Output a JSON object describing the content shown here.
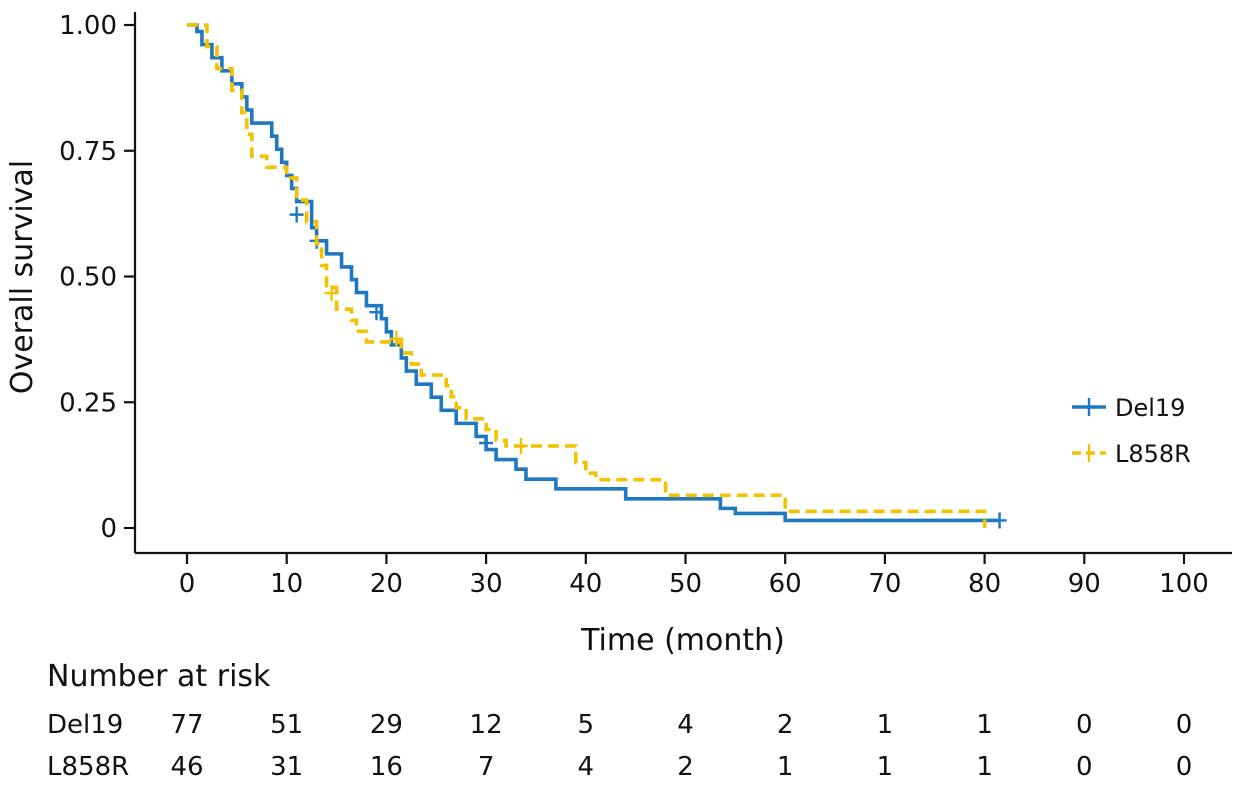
{
  "chart_data": {
    "type": "line",
    "subtype": "kaplan-meier",
    "xlabel": "Time (month)",
    "ylabel": "Overall survival",
    "xlim": [
      0,
      100
    ],
    "ylim": [
      0,
      1
    ],
    "x_ticks": [
      "0",
      "10",
      "20",
      "30",
      "40",
      "50",
      "60",
      "70",
      "80",
      "90",
      "100"
    ],
    "y_ticks": [
      "0",
      "0.25",
      "0.50",
      "0.75",
      "1.00"
    ],
    "grid": false,
    "legend_position": "right",
    "series": [
      {
        "name": "Del19",
        "color": "#1f77bf",
        "dash": "solid",
        "steps": [
          [
            0,
            1.0
          ],
          [
            1,
            0.987
          ],
          [
            1.5,
            0.961
          ],
          [
            2.5,
            0.935
          ],
          [
            3.5,
            0.909
          ],
          [
            4.5,
            0.883
          ],
          [
            5.5,
            0.857
          ],
          [
            6,
            0.831
          ],
          [
            6.5,
            0.805
          ],
          [
            8.5,
            0.779
          ],
          [
            9.0,
            0.753
          ],
          [
            9.5,
            0.727
          ],
          [
            10,
            0.701
          ],
          [
            10.5,
            0.675
          ],
          [
            11,
            0.649
          ],
          [
            12.5,
            0.597
          ],
          [
            13,
            0.571
          ],
          [
            14,
            0.545
          ],
          [
            15.5,
            0.519
          ],
          [
            16.5,
            0.494
          ],
          [
            17,
            0.468
          ],
          [
            18,
            0.442
          ],
          [
            19.5,
            0.416
          ],
          [
            20,
            0.39
          ],
          [
            20.5,
            0.364
          ],
          [
            21.5,
            0.338
          ],
          [
            22,
            0.312
          ],
          [
            23,
            0.286
          ],
          [
            24.5,
            0.26
          ],
          [
            25.5,
            0.234
          ],
          [
            27,
            0.208
          ],
          [
            29,
            0.182
          ],
          [
            30,
            0.156
          ],
          [
            31,
            0.136
          ],
          [
            33,
            0.117
          ],
          [
            34,
            0.097
          ],
          [
            37,
            0.078
          ],
          [
            44,
            0.058
          ],
          [
            53.5,
            0.039
          ],
          [
            55,
            0.029
          ],
          [
            60,
            0.015
          ],
          [
            81.5,
            0.015
          ]
        ],
        "censored": [
          [
            11,
            0.623
          ],
          [
            13,
            0.571
          ],
          [
            19,
            0.429
          ],
          [
            30,
            0.169
          ],
          [
            81.5,
            0.015
          ]
        ]
      },
      {
        "name": "L858R",
        "color": "#f2c200",
        "dash": "dashed",
        "steps": [
          [
            0,
            1.0
          ],
          [
            2,
            0.957
          ],
          [
            3,
            0.913
          ],
          [
            4.5,
            0.87
          ],
          [
            5.5,
            0.826
          ],
          [
            6,
            0.783
          ],
          [
            6.5,
            0.739
          ],
          [
            8,
            0.717
          ],
          [
            10,
            0.696
          ],
          [
            11,
            0.652
          ],
          [
            12,
            0.609
          ],
          [
            13,
            0.565
          ],
          [
            13.5,
            0.522
          ],
          [
            14,
            0.478
          ],
          [
            15,
            0.435
          ],
          [
            16.5,
            0.413
          ],
          [
            17,
            0.391
          ],
          [
            18,
            0.37
          ],
          [
            20,
            0.37
          ],
          [
            21.5,
            0.348
          ],
          [
            22.5,
            0.326
          ],
          [
            23.5,
            0.304
          ],
          [
            26,
            0.283
          ],
          [
            26.5,
            0.261
          ],
          [
            27,
            0.239
          ],
          [
            28,
            0.217
          ],
          [
            30,
            0.196
          ],
          [
            31,
            0.174
          ],
          [
            32,
            0.163
          ],
          [
            39,
            0.13
          ],
          [
            40,
            0.109
          ],
          [
            41,
            0.096
          ],
          [
            48,
            0.065
          ],
          [
            60,
            0.033
          ],
          [
            80,
            0.033
          ],
          [
            80,
            0.0
          ]
        ],
        "censored": [
          [
            14.5,
            0.467
          ],
          [
            21,
            0.376
          ],
          [
            33.5,
            0.163
          ]
        ]
      }
    ],
    "risk_table": {
      "title": "Number at risk",
      "times": [
        0,
        10,
        20,
        30,
        40,
        50,
        60,
        70,
        80,
        90,
        100
      ],
      "rows": [
        {
          "name": "Del19",
          "values": [
            77,
            51,
            29,
            12,
            5,
            4,
            2,
            1,
            1,
            0,
            0
          ]
        },
        {
          "name": "L858R",
          "values": [
            46,
            31,
            16,
            7,
            4,
            2,
            1,
            1,
            1,
            0,
            0
          ]
        }
      ]
    }
  }
}
